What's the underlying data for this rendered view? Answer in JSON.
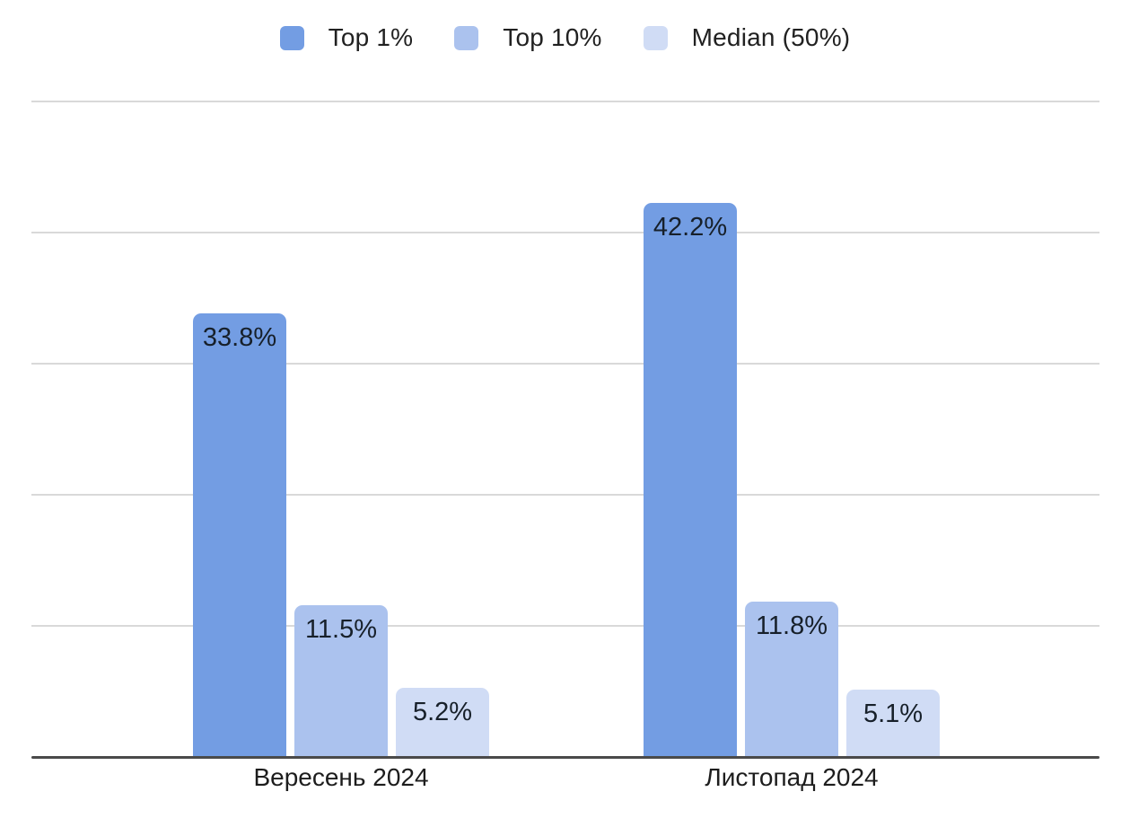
{
  "chart_data": {
    "type": "bar",
    "title": "",
    "categories": [
      "Вересень 2024",
      "Листопад 2024"
    ],
    "series": [
      {
        "name": "Top 1%",
        "color": "#739de3",
        "values": [
          33.8,
          42.2
        ],
        "labels": [
          "33.8%",
          "42.2%"
        ]
      },
      {
        "name": "Top 10%",
        "color": "#abc2ee",
        "values": [
          11.5,
          11.8
        ],
        "labels": [
          "11.5%",
          "11.8%"
        ]
      },
      {
        "name": "Median (50%)",
        "color": "#d0dcf5",
        "values": [
          5.2,
          5.1
        ],
        "labels": [
          "5.2%",
          "5.1%"
        ]
      }
    ],
    "ylim": [
      0,
      50
    ],
    "gridline_step": 10,
    "grid": true,
    "y_axis_labels_visible": false,
    "legend_position": "top",
    "xlabel": "",
    "ylabel": ""
  },
  "colors": {
    "background": "#ffffff",
    "gridline": "#d9d9d9",
    "axis": "#4a4a4a",
    "bar_label_text": "#17202a",
    "category_label_text": "#1d1d1d",
    "legend_text": "#212121"
  }
}
